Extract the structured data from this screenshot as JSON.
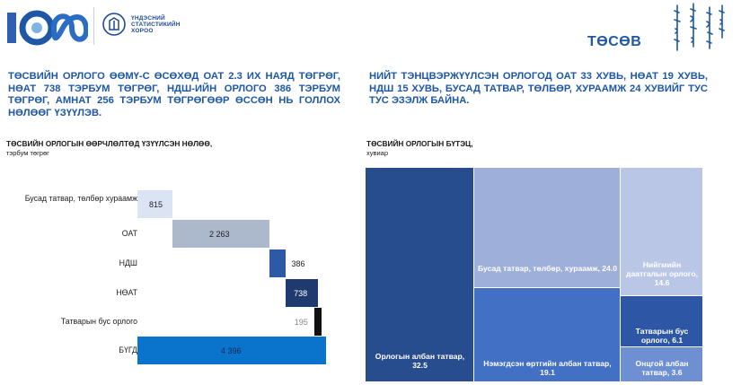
{
  "header": {
    "org_name_lines": [
      "ҮНДЭСНИЙ",
      "СТАТИСТИКИЙН",
      "ХОРОО"
    ],
    "logo_text": "100",
    "page_title": "ТӨСӨВ"
  },
  "intro": {
    "left": "ТӨСВИЙН ОРЛОГО ӨӨМҮ-С ӨСӨХӨД ОАТ 2.3 ИХ НАЯД ТӨГРӨГ, НӨАТ 738 ТЭРБУМ ТӨГРӨГ, НДШ-ИЙН ОРЛОГО 386 ТЭРБУМ ТӨГРӨГ, АМНАТ 256 ТЭРБУМ ТӨГРӨГӨӨР ӨССӨН НЬ ГОЛЛОХ НӨЛӨӨГ ҮЗҮҮЛЭВ.",
    "right": "НИЙТ ТЭНЦВЭРЖҮҮЛСЭН ОРЛОГОД ОАТ 33 ХУВЬ, НӨАТ 19 ХУВЬ, НДШ 15 ХУВЬ, БУСАД ТАТВАР, ТӨЛБӨР, ХУРААМЖ 24 ХУВИЙГ ТУС ТУС ЭЗЭЛЖ БАЙНА."
  },
  "chart_data": [
    {
      "type": "bar",
      "title": "ТӨСВИЙН ОРЛОГЫН ӨӨРЧЛӨЛТӨД ҮЗҮҮЛСЭН НӨЛӨӨ,",
      "subtitle": "тэрбум төгрөг",
      "style": "waterfall",
      "categories": [
        "Бусад татвар, төлбөр хураамж",
        "ОАТ",
        "НДШ",
        "НӨАТ",
        "Татварын бус орлого",
        "БҮГД"
      ],
      "values": [
        815,
        2263,
        386,
        738,
        195,
        4396
      ],
      "value_labels": [
        "815",
        "2 263",
        "386",
        "738",
        "195",
        "4 396"
      ],
      "colors": [
        "#dbe4f3",
        "#acb9cc",
        "#2e59a7",
        "#1e3a6e",
        "#111111",
        "#0a74cc"
      ]
    },
    {
      "type": "treemap",
      "title": "ТӨСВИЙН ОРЛОГЫН БҮТЭЦ,",
      "subtitle": "хувиар",
      "items": [
        {
          "label": "Орлогын албан татвар, 32.5",
          "value": 32.5,
          "color": "#284d8f"
        },
        {
          "label": "Бусад татвар, төлбөр, хураамж, 24.0",
          "value": 24.0,
          "color": "#9eafd9"
        },
        {
          "label": "Нэмэгдсэн өртгийн албан татвар, 19.1",
          "value": 19.1,
          "color": "#4270c4"
        },
        {
          "label": "Нийгмийн даатгалын орлого, 14.6",
          "value": 14.6,
          "color": "#b9c6e6"
        },
        {
          "label": "Татварын бус орлого, 6.1",
          "value": 6.1,
          "color": "#2d57a4"
        },
        {
          "label": "Онцгой албан татвар, 3.6",
          "value": 3.6,
          "color": "#6f8fd3"
        }
      ]
    }
  ]
}
